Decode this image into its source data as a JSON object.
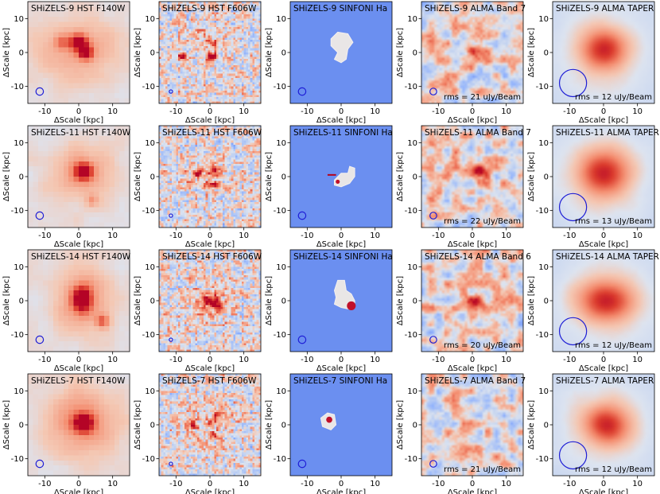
{
  "chart_data": {
    "type": "image-grid",
    "axis_label_x": "ΔScale [kpc]",
    "axis_label_y": "ΔScale [kpc]",
    "xlim": [
      -15,
      15
    ],
    "ylim": [
      -15,
      15
    ],
    "xticks": [
      -10,
      0,
      10
    ],
    "yticks": [
      -10,
      0,
      10
    ],
    "colormap": "coolwarm",
    "sinfoni_background": "#6b8ff0",
    "beam_color": "#1f1fd6",
    "rows": [
      {
        "panels": [
          {
            "title": "SHiZELS-9 HST F140W",
            "kind": "hst140",
            "beam": {
              "x": -11.5,
              "y": -11.5,
              "r": 1.1
            },
            "blobs": [
              {
                "x": 0,
                "y": 1,
                "sx": 8,
                "sy": 6,
                "a": 0.3
              },
              {
                "x": 0,
                "y": 3,
                "sx": 1.8,
                "sy": 1.6,
                "a": 0.9
              },
              {
                "x": 2,
                "y": 0,
                "sx": 1.4,
                "sy": 1.3,
                "a": 0.9
              },
              {
                "x": -5,
                "y": 3,
                "sx": 1.5,
                "sy": 1.5,
                "a": 0.35
              }
            ]
          },
          {
            "title": "SHiZELS-9 HST F606W",
            "kind": "hst606",
            "beam": {
              "x": -11.5,
              "y": -11.5,
              "r": 0.5
            },
            "blobs": [
              {
                "x": -8,
                "y": -1,
                "sx": 0.8,
                "sy": 0.8,
                "a": 1.0
              },
              {
                "x": 0.5,
                "y": -1.5,
                "sx": 1.0,
                "sy": 0.9,
                "a": 1.0
              },
              {
                "x": 1,
                "y": 2.5,
                "sx": 0.8,
                "sy": 0.8,
                "a": 0.55
              },
              {
                "x": -1,
                "y": 3,
                "sx": 3.5,
                "sy": 3.0,
                "a": 0.28
              }
            ]
          },
          {
            "title": "SHiZELS-9 SINFONI Ha",
            "kind": "sinfoni",
            "beam": {
              "x": -11.5,
              "y": -11.5,
              "r": 1.1
            },
            "shape": [
              [
                -3,
                4
              ],
              [
                -1,
                6
              ],
              [
                2,
                5.5
              ],
              [
                3.5,
                3
              ],
              [
                2,
                1
              ],
              [
                1.5,
                -2
              ],
              [
                0,
                -3
              ],
              [
                -2,
                -2
              ],
              [
                -1,
                0
              ],
              [
                -3,
                2
              ]
            ],
            "spots": []
          },
          {
            "title": "SHiZELS-9 ALMA Band 7",
            "kind": "alma",
            "rms": "rms = 21 uJy/Beam",
            "beam": {
              "x": -11.5,
              "y": -11.5,
              "r": 1.0
            },
            "blobs": [
              {
                "x": -1,
                "y": 2,
                "sx": 2.0,
                "sy": 1.5,
                "a": 0.55
              },
              {
                "x": 2,
                "y": -1,
                "sx": 1.5,
                "sy": 1.5,
                "a": 0.25
              }
            ]
          },
          {
            "title": "SHiZELS-9 ALMA TAPER",
            "kind": "taper",
            "rms": "rms = 12 uJy/Beam",
            "beam": {
              "x": -9,
              "y": -9,
              "r": 4.0
            },
            "blobs": [
              {
                "x": 0,
                "y": 1,
                "sx": 4.5,
                "sy": 4.0,
                "a": 1.0
              }
            ]
          }
        ]
      },
      {
        "panels": [
          {
            "title": "SHiZELS-11 HST F140W",
            "kind": "hst140",
            "beam": {
              "x": -11.5,
              "y": -11.5,
              "r": 1.1
            },
            "blobs": [
              {
                "x": 1,
                "y": 1,
                "sx": 6,
                "sy": 5,
                "a": 0.35
              },
              {
                "x": 1.5,
                "y": 1.5,
                "sx": 1.7,
                "sy": 1.6,
                "a": 1.0
              },
              {
                "x": 4,
                "y": -7,
                "sx": 1.2,
                "sy": 1.2,
                "a": 0.25
              }
            ]
          },
          {
            "title": "SHiZELS-11 HST F606W",
            "kind": "hst606",
            "beam": {
              "x": -11.5,
              "y": -11.5,
              "r": 0.5
            },
            "blobs": [
              {
                "x": -3.5,
                "y": 1,
                "sx": 0.8,
                "sy": 0.8,
                "a": 1.0
              },
              {
                "x": 1.5,
                "y": 1.5,
                "sx": 0.9,
                "sy": 0.9,
                "a": 0.8
              },
              {
                "x": 1,
                "y": -2.5,
                "sx": 1.2,
                "sy": 0.6,
                "a": 0.8
              },
              {
                "x": -1,
                "y": 0,
                "sx": 4.0,
                "sy": 3.5,
                "a": 0.28
              }
            ]
          },
          {
            "title": "SHiZELS-11 SINFONI Ha",
            "kind": "sinfoni",
            "beam": {
              "x": -11.5,
              "y": -11.5,
              "r": 1.1
            },
            "shape": [
              [
                -2,
                -1
              ],
              [
                0,
                1
              ],
              [
                2,
                1
              ],
              [
                2.5,
                3
              ],
              [
                4,
                2.5
              ],
              [
                4,
                0
              ],
              [
                2.5,
                -2
              ],
              [
                0,
                -3
              ],
              [
                -2,
                -2.5
              ]
            ],
            "spots": [
              {
                "x": -1,
                "y": -1.5,
                "r": 0.6
              }
            ],
            "streak": [
              [
                -4,
                0.5
              ],
              [
                -1.5,
                0.5
              ]
            ]
          },
          {
            "title": "SHiZELS-11 ALMA Band 7",
            "kind": "alma",
            "rms": "rms = 22 uJy/Beam",
            "beam": {
              "x": -11.5,
              "y": -11.5,
              "r": 1.0
            },
            "blobs": [
              {
                "x": 1.5,
                "y": 1,
                "sx": 2.5,
                "sy": 1.2,
                "a": 1.0
              },
              {
                "x": -3,
                "y": 1,
                "sx": 4.0,
                "sy": 2.5,
                "a": 0.2
              }
            ]
          },
          {
            "title": "SHiZELS-11 ALMA TAPER",
            "kind": "taper",
            "rms": "rms = 13 uJy/Beam",
            "beam": {
              "x": -9,
              "y": -9,
              "r": 4.0
            },
            "blobs": [
              {
                "x": 0,
                "y": 1,
                "sx": 5.0,
                "sy": 4.5,
                "a": 1.0
              }
            ]
          }
        ]
      },
      {
        "panels": [
          {
            "title": "SHiZELS-14 HST F140W",
            "kind": "hst140",
            "beam": {
              "x": -11.5,
              "y": -11.5,
              "r": 1.1
            },
            "blobs": [
              {
                "x": 1,
                "y": 0,
                "sx": 5,
                "sy": 6,
                "a": 0.4
              },
              {
                "x": 1,
                "y": 0.5,
                "sx": 1.8,
                "sy": 2.5,
                "a": 1.0
              },
              {
                "x": 7,
                "y": -6,
                "sx": 1.3,
                "sy": 1.3,
                "a": 0.5
              }
            ]
          },
          {
            "title": "SHiZELS-14 HST F606W",
            "kind": "hst606",
            "beam": {
              "x": -11.5,
              "y": -11.5,
              "r": 0.5
            },
            "blobs": [
              {
                "x": 0,
                "y": 0,
                "sx": 1.5,
                "sy": 1.2,
                "a": 1.0
              },
              {
                "x": 2.5,
                "y": -1.5,
                "sx": 1.0,
                "sy": 1.0,
                "a": 0.8
              },
              {
                "x": 0,
                "y": 0,
                "sx": 4.5,
                "sy": 4.5,
                "a": 0.3
              }
            ]
          },
          {
            "title": "SHiZELS-14 SINFONI Ha",
            "kind": "sinfoni",
            "beam": {
              "x": -11.5,
              "y": -11.5,
              "r": 1.1
            },
            "shape": [
              [
                -1,
                6
              ],
              [
                1,
                6
              ],
              [
                1.5,
                3
              ],
              [
                3,
                2
              ],
              [
                4,
                0
              ],
              [
                4,
                -2
              ],
              [
                2.5,
                -2.5
              ],
              [
                0,
                -2
              ],
              [
                -2,
                -1
              ],
              [
                -1.5,
                1
              ],
              [
                -2,
                3
              ]
            ],
            "spots": [
              {
                "x": 3,
                "y": -1.5,
                "r": 1.3
              }
            ]
          },
          {
            "title": "SHiZELS-14 ALMA Band 6",
            "kind": "alma",
            "rms": "rms = 20 uJy/Beam",
            "beam": {
              "x": -11.5,
              "y": -11.5,
              "r": 1.0
            },
            "blobs": [
              {
                "x": 0.5,
                "y": 0,
                "sx": 2.0,
                "sy": 1.5,
                "a": 1.0
              },
              {
                "x": 3,
                "y": -3,
                "sx": 2.5,
                "sy": 2.5,
                "a": 0.45
              }
            ]
          },
          {
            "title": "SHiZELS-14 ALMA TAPER",
            "kind": "taper",
            "rms": "rms = 12 uJy/Beam",
            "beam": {
              "x": -9,
              "y": -9,
              "r": 4.0
            },
            "blobs": [
              {
                "x": 1,
                "y": 0,
                "sx": 5.5,
                "sy": 4.0,
                "a": 1.0
              }
            ]
          }
        ]
      },
      {
        "panels": [
          {
            "title": "SHiZELS-7 HST F140W",
            "kind": "hst140",
            "beam": {
              "x": -11.5,
              "y": -11.5,
              "r": 1.1
            },
            "blobs": [
              {
                "x": 1,
                "y": 1,
                "sx": 7,
                "sy": 6.5,
                "a": 0.4
              },
              {
                "x": 1.5,
                "y": 0.5,
                "sx": 2.0,
                "sy": 1.8,
                "a": 1.0
              }
            ]
          },
          {
            "title": "SHiZELS-7 HST F606W",
            "kind": "hst606",
            "beam": {
              "x": -11.5,
              "y": -11.5,
              "r": 0.5
            },
            "blobs": [
              {
                "x": -5,
                "y": 0,
                "sx": 0.7,
                "sy": 0.7,
                "a": 0.9
              },
              {
                "x": 0,
                "y": 1,
                "sx": 0.6,
                "sy": 0.6,
                "a": 0.7
              },
              {
                "x": 1,
                "y": -3,
                "sx": 0.8,
                "sy": 0.8,
                "a": 0.7
              },
              {
                "x": 2.5,
                "y": 3,
                "sx": 0.7,
                "sy": 0.7,
                "a": 0.6
              },
              {
                "x": 0,
                "y": 0,
                "sx": 5.0,
                "sy": 5.0,
                "a": 0.22
              }
            ]
          },
          {
            "title": "SHiZELS-7 SINFONI Ha",
            "kind": "sinfoni",
            "beam": {
              "x": -11.5,
              "y": -11.5,
              "r": 1.1
            },
            "shape": [
              [
                -6,
                2
              ],
              [
                -4,
                3.5
              ],
              [
                -2,
                3
              ],
              [
                -1.5,
                0
              ],
              [
                -3,
                -1.5
              ],
              [
                -5.5,
                -0.5
              ]
            ],
            "spots": [
              {
                "x": -3.5,
                "y": 1.5,
                "r": 0.9
              }
            ]
          },
          {
            "title": "SHiZELS-7 ALMA Band 7",
            "kind": "alma",
            "rms": "rms = 21 uJy/Beam",
            "beam": {
              "x": -11.5,
              "y": -11.5,
              "r": 1.0
            },
            "blobs": [
              {
                "x": -1,
                "y": 0,
                "sx": 3.0,
                "sy": 2.5,
                "a": 0.3
              }
            ]
          },
          {
            "title": "SHiZELS-7 ALMA TAPER",
            "kind": "taper",
            "rms": "rms = 12 uJy/Beam",
            "beam": {
              "x": -9,
              "y": -9,
              "r": 4.0
            },
            "blobs": [
              {
                "x": 1,
                "y": 0,
                "sx": 4.5,
                "sy": 4.0,
                "a": 1.0
              }
            ]
          }
        ]
      }
    ]
  }
}
